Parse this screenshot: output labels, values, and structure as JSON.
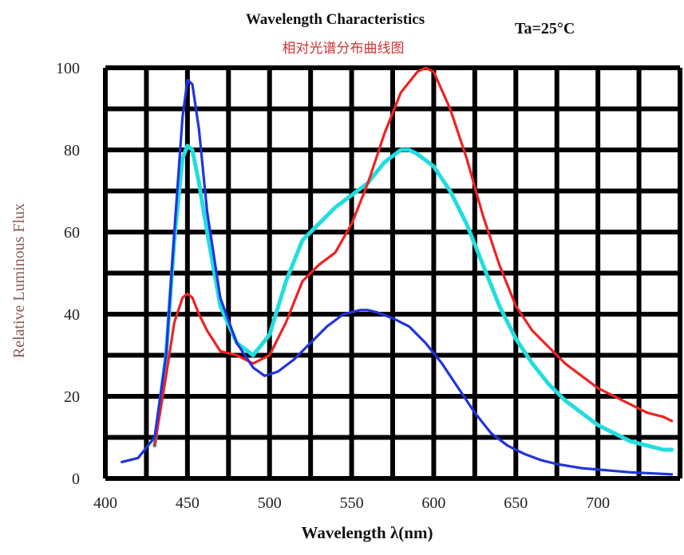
{
  "chart_data": {
    "type": "line",
    "title": "Wavelength Characteristics",
    "condition": "Ta=25°C",
    "subtitle": "相对光谱分布曲线图",
    "xlabel": "Wavelength λ(nm)",
    "ylabel": "Relative Luminous Flux",
    "xlim": [
      400,
      750
    ],
    "ylim": [
      0,
      100
    ],
    "x_ticks": [
      400,
      450,
      500,
      550,
      600,
      650,
      700
    ],
    "y_ticks": [
      0,
      20,
      40,
      60,
      80,
      100
    ],
    "grid": true,
    "legend": "none",
    "series": [
      {
        "color": "#2233dd",
        "x": [
          410,
          420,
          430,
          437,
          442,
          447,
          450,
          453,
          457,
          462,
          470,
          480,
          490,
          497,
          505,
          515,
          525,
          535,
          545,
          555,
          560,
          565,
          575,
          585,
          595,
          605,
          615,
          625,
          635,
          645,
          655,
          665,
          675,
          690,
          705,
          720,
          735,
          745
        ],
        "y": [
          4,
          5,
          10,
          30,
          60,
          88,
          97,
          96,
          85,
          65,
          44,
          33,
          27,
          25,
          26,
          29,
          33,
          37,
          40,
          41,
          41,
          40.5,
          39,
          37,
          33,
          28,
          22,
          16,
          11,
          8,
          6,
          4.5,
          3.5,
          2.5,
          2,
          1.5,
          1.2,
          1
        ]
      },
      {
        "color": "#ee2222",
        "x": [
          430,
          437,
          442,
          447,
          450,
          453,
          457,
          462,
          470,
          480,
          490,
          500,
          510,
          520,
          530,
          540,
          550,
          560,
          570,
          580,
          590,
          595,
          600,
          610,
          620,
          630,
          640,
          650,
          660,
          670,
          680,
          690,
          700,
          710,
          720,
          730,
          740,
          745
        ],
        "y": [
          8,
          25,
          38,
          44,
          45,
          44,
          40,
          36,
          31,
          30,
          28,
          30,
          38,
          48,
          52,
          55,
          62,
          72,
          84,
          94,
          99,
          100,
          99,
          90,
          78,
          64,
          52,
          42,
          36,
          32,
          28,
          25,
          22,
          20,
          18,
          16,
          15,
          14
        ]
      },
      {
        "color": "#22dddd",
        "x": [
          430,
          437,
          442,
          447,
          450,
          453,
          457,
          462,
          470,
          480,
          490,
          500,
          510,
          520,
          530,
          540,
          550,
          560,
          570,
          580,
          585,
          590,
          600,
          610,
          620,
          630,
          640,
          650,
          660,
          670,
          680,
          690,
          700,
          710,
          720,
          730,
          740,
          745
        ],
        "y": [
          8,
          30,
          58,
          78,
          81,
          80,
          72,
          60,
          42,
          33,
          30,
          35,
          48,
          58,
          62,
          66,
          69,
          72,
          77,
          80,
          80,
          79,
          76,
          70,
          62,
          52,
          42,
          34,
          28,
          23,
          19,
          16,
          13,
          11,
          9,
          8,
          7,
          7
        ]
      }
    ]
  }
}
